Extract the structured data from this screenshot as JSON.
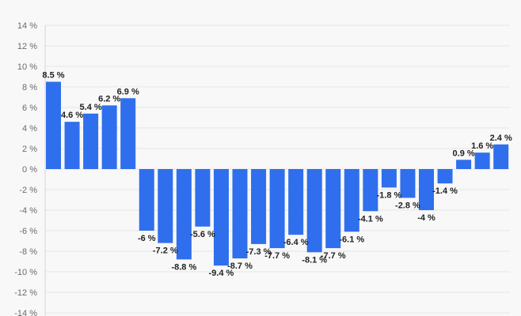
{
  "chart_data": {
    "type": "bar",
    "title": "",
    "xlabel": "",
    "ylabel": "",
    "ylim": [
      -14,
      14
    ],
    "yticks": [
      -14,
      -12,
      -10,
      -8,
      -6,
      -4,
      -2,
      0,
      2,
      4,
      6,
      8,
      10,
      12,
      14
    ],
    "ytick_labels": [
      "-14 %",
      "-12 %",
      "-10 %",
      "-8 %",
      "-6 %",
      "-4 %",
      "-2 %",
      "0 %",
      "2 %",
      "4 %",
      "6 %",
      "8 %",
      "10 %",
      "12 %",
      "14 %"
    ],
    "grid": true,
    "bar_color": "#2f6fed",
    "values": [
      8.5,
      4.6,
      5.4,
      6.2,
      6.9,
      -6,
      -7.2,
      -8.8,
      -5.6,
      -9.4,
      -8.7,
      -7.3,
      -7.7,
      -6.4,
      -8.1,
      -7.7,
      -6.1,
      -4.1,
      -1.8,
      -2.8,
      -4,
      -1.4,
      0.9,
      1.6,
      2.4
    ],
    "labels": [
      "8.5 %",
      "4.6 %",
      "5.4 %",
      "6.2 %",
      "6.9 %",
      "-6 %",
      "-7.2 %",
      "-8.8 %",
      "-5.6 %",
      "-9.4 %",
      "-8.7 %",
      "-7.3 %",
      "-7.7 %",
      "-6.4 %",
      "-8.1 %",
      "-7.7 %",
      "-6.1 %",
      "-4.1 %",
      "-1.8 %",
      "-2.8 %",
      "-4 %",
      "-1.4 %",
      "0.9 %",
      "1.6 %",
      "2.4 %"
    ]
  }
}
